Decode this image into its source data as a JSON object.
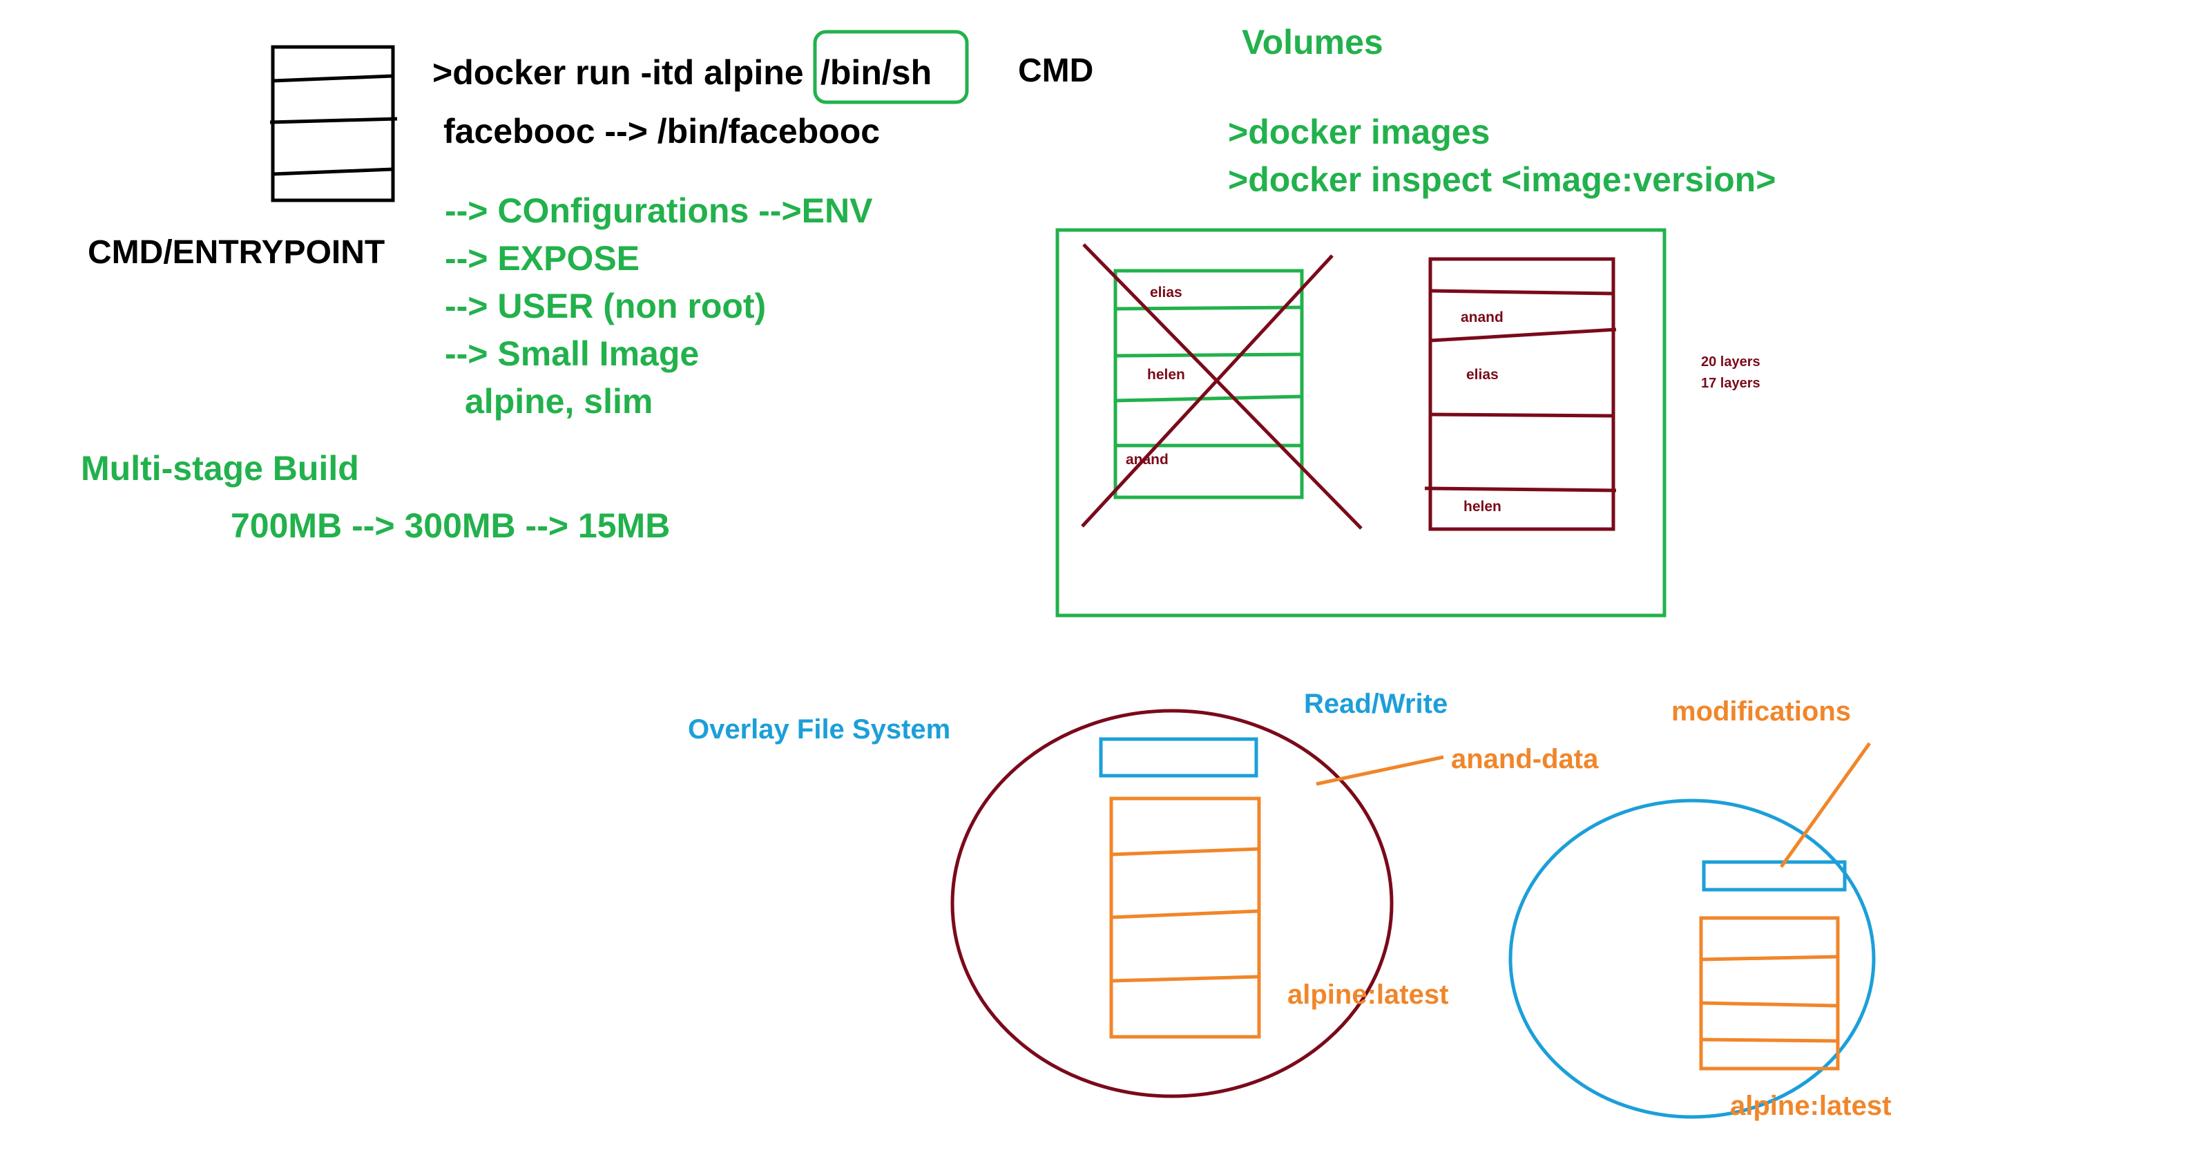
{
  "colors": {
    "black": "#000000",
    "green": "#22b14c",
    "maroon": "#7a0a1a",
    "blue": "#1c9fd8",
    "orange": "#f0862a"
  },
  "top_left": {
    "cmd_entrypoint": "CMD/ENTRYPOINT",
    "docker_run_prefix": ">docker run -itd alpine ",
    "docker_run_shell": "/bin/sh",
    "cmd_label": "CMD",
    "facebooc_line": "facebooc --> /bin/facebooc"
  },
  "best_practices": [
    "--> COnfigurations -->ENV",
    "--> EXPOSE",
    "--> USER (non root)",
    "--> Small Image",
    "alpine, slim"
  ],
  "multistage": {
    "title": "Multi-stage Build",
    "sizes": "700MB --> 300MB --> 15MB"
  },
  "volumes": {
    "title": "Volumes",
    "cmd_images": ">docker images",
    "cmd_inspect": ">docker inspect <image:version>"
  },
  "layers_diagram": {
    "left_stack_labels": [
      "elias",
      "helen",
      "anand"
    ],
    "right_stack_labels": [
      "anand",
      "elias",
      "helen"
    ],
    "layer_counts": [
      "20 layers",
      "17 layers"
    ]
  },
  "overlay": {
    "title": "Overlay File System",
    "read_write": "Read/Write",
    "volume_name": "anand-data",
    "image_left": "alpine:latest",
    "modifications": "modifications",
    "image_right": "alpine:latest"
  }
}
